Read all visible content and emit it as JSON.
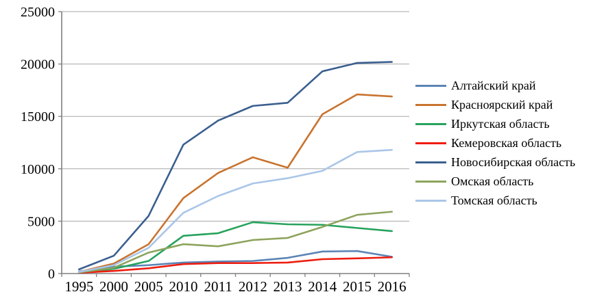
{
  "chart_data": {
    "type": "line",
    "title": "",
    "xlabel": "",
    "ylabel": "",
    "categories": [
      "1995",
      "2000",
      "2005",
      "2010",
      "2011",
      "2012",
      "2013",
      "2014",
      "2015",
      "2016"
    ],
    "y_ticks": [
      0,
      5000,
      10000,
      15000,
      20000,
      25000
    ],
    "ylim": [
      0,
      25000
    ],
    "grid": "horizontal",
    "legend_position": "right",
    "series": [
      {
        "name": "Алтайский край",
        "color": "#5b84b5",
        "values": [
          200,
          650,
          800,
          1050,
          1150,
          1200,
          1500,
          2100,
          2150,
          1600
        ]
      },
      {
        "name": "Красноярский край",
        "color": "#c9732e",
        "values": [
          150,
          950,
          2800,
          7200,
          9600,
          11100,
          10100,
          15200,
          17100,
          16900
        ]
      },
      {
        "name": "Иркутская область",
        "color": "#26a25b",
        "values": [
          100,
          450,
          1200,
          3600,
          3850,
          4900,
          4700,
          4650,
          4350,
          4050
        ]
      },
      {
        "name": "Кемеровская область",
        "color": "#ee1c0f",
        "values": [
          80,
          250,
          500,
          900,
          1000,
          1000,
          1050,
          1370,
          1450,
          1550
        ]
      },
      {
        "name": "Новосибирская область",
        "color": "#3a5f8f",
        "values": [
          400,
          1700,
          5500,
          12300,
          14600,
          16000,
          16300,
          19300,
          20100,
          20200
        ]
      },
      {
        "name": "Омская область",
        "color": "#8ca45c",
        "values": [
          100,
          550,
          2000,
          2800,
          2600,
          3200,
          3400,
          4450,
          5600,
          5900
        ]
      },
      {
        "name": "Томская область",
        "color": "#a9c6e8",
        "values": [
          150,
          800,
          2450,
          5800,
          7400,
          8600,
          9100,
          9800,
          11600,
          11800
        ]
      }
    ],
    "style": {
      "gridline_color": "#a6a6a6",
      "axis_color": "#7f7f7f",
      "tick_label_color": "#000000",
      "line_width": 2.6
    }
  }
}
